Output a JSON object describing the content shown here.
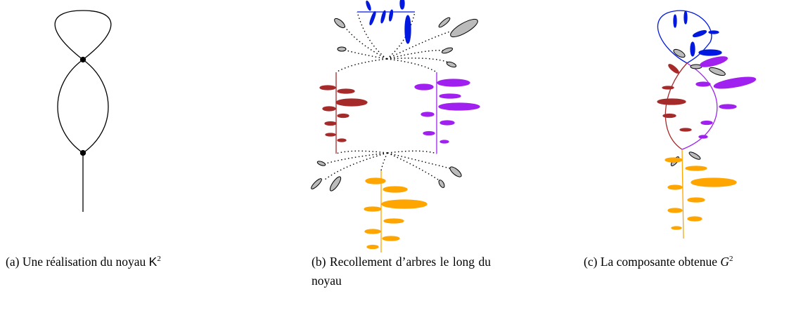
{
  "figures": [
    {
      "label": "(a)",
      "caption": "Une réalisation du noyau",
      "symbol": "K",
      "superscript": "2"
    },
    {
      "label": "(b)",
      "caption": "Recollement d’arbres le long du noyau"
    },
    {
      "label": "(c)",
      "caption": "La composante obtenue",
      "symbol": "G",
      "superscript": "2"
    }
  ]
}
